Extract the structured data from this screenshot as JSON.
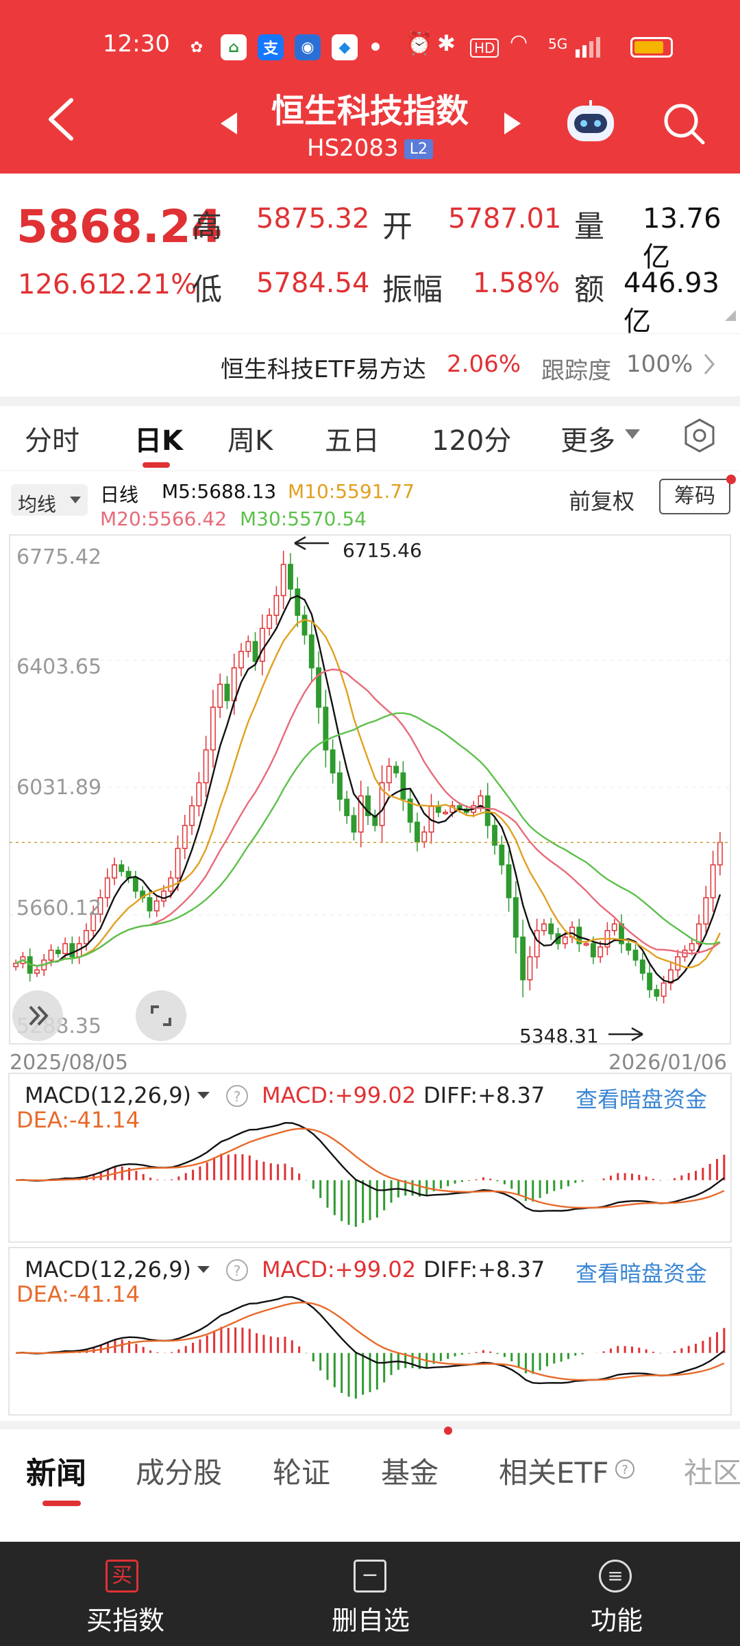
{
  "status_bar": {
    "time": "12:30",
    "signal": "5G"
  },
  "header": {
    "title": "恒生科技指数",
    "code": "HS2083",
    "badge": "L2"
  },
  "quote": {
    "price": "5868.24",
    "change": "126.61",
    "change_pct": "2.21%",
    "high_label": "高",
    "high": "5875.32",
    "open_label": "开",
    "open": "5787.01",
    "volume_label": "量",
    "volume": "13.76亿",
    "low_label": "低",
    "low": "5784.54",
    "amplitude_label": "振幅",
    "amplitude": "1.58%",
    "amount_label": "额",
    "amount": "446.93亿"
  },
  "etf_bar": {
    "name": "恒生科技ETF易方达",
    "pct": "2.06%",
    "tracking_label": "跟踪度",
    "tracking": "100%"
  },
  "k_tabs": [
    "分时",
    "日K",
    "周K",
    "五日",
    "120分",
    "更多"
  ],
  "ma_panel": {
    "ma_selector": "均线",
    "period": "日线",
    "m5": "M5:5688.13",
    "m10": "M10:5591.77",
    "m20": "M20:5566.42",
    "m30": "M30:5570.54",
    "adjust": "前复权",
    "chip": "筹码"
  },
  "colors": {
    "up": "#e03134",
    "down": "#2f9a2f",
    "ma5": "#111111",
    "ma10": "#e0a020",
    "ma20": "#e86a78",
    "ma30": "#5cc14a"
  },
  "chart_data": [
    {
      "type": "candlestick",
      "y_ticks": [
        "6775.42",
        "6403.65",
        "6031.89",
        "5660.12",
        "5288.35"
      ],
      "ylim": [
        5288.35,
        6775.42
      ],
      "x_start": "2025/08/05",
      "x_end": "2026/01/06",
      "annotations": {
        "high": "6715.46",
        "low": "5348.31"
      },
      "closes": [
        5500,
        5520,
        5470,
        5480,
        5510,
        5540,
        5530,
        5560,
        5520,
        5560,
        5600,
        5650,
        5700,
        5760,
        5800,
        5780,
        5760,
        5720,
        5700,
        5660,
        5690,
        5720,
        5760,
        5850,
        5920,
        5980,
        6050,
        6150,
        6280,
        6350,
        6300,
        6400,
        6450,
        6480,
        6420,
        6520,
        6560,
        6620,
        6715,
        6640,
        6560,
        6500,
        6400,
        6280,
        6150,
        6080,
        6000,
        5950,
        5900,
        6010,
        5950,
        5920,
        6050,
        6100,
        6080,
        6000,
        5930,
        5870,
        5900,
        5980,
        5960,
        5960,
        5980,
        5970,
        5960,
        5980,
        6010,
        5920,
        5860,
        5800,
        5700,
        5580,
        5450,
        5520,
        5600,
        5620,
        5590,
        5560,
        5580,
        5610,
        5560,
        5560,
        5520,
        5550,
        5600,
        5620,
        5560,
        5540,
        5510,
        5470,
        5420,
        5400,
        5440,
        5480,
        5520,
        5540,
        5560,
        5620,
        5700,
        5800,
        5868.24
      ]
    },
    {
      "type": "bar",
      "name": "MACD(12,26,9)",
      "macd": "MACD:+99.02",
      "diff": "DIFF:+8.37",
      "dea": "DEA:-41.14",
      "link": "查看暗盘资金"
    },
    {
      "type": "bar",
      "name": "MACD(12,26,9)",
      "macd": "MACD:+99.02",
      "diff": "DIFF:+8.37",
      "dea": "DEA:-41.14",
      "link": "查看暗盘资金"
    }
  ],
  "news_tabs": [
    "新闻",
    "成分股",
    "轮证",
    "基金",
    "相关ETF",
    "社区"
  ],
  "bottom_nav": [
    {
      "icon": "买",
      "label": "买指数"
    },
    {
      "icon": "−",
      "label": "删自选"
    },
    {
      "icon": "≡",
      "label": "功能"
    }
  ]
}
